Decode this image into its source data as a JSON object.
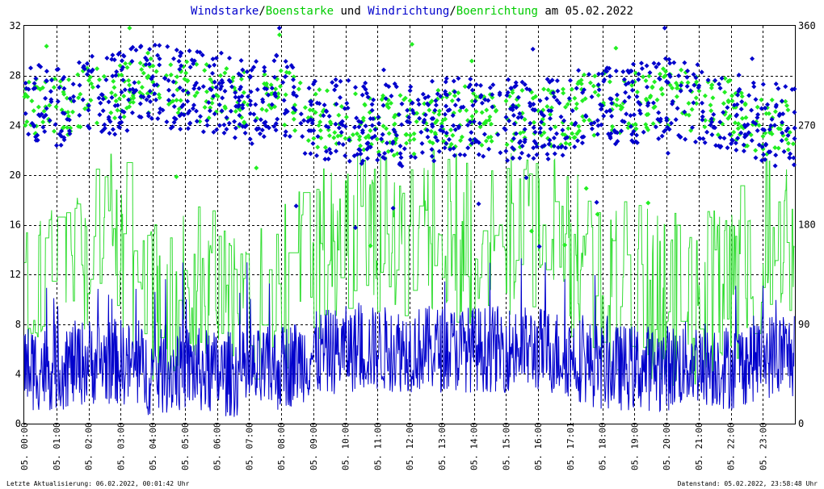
{
  "chart_data": {
    "type": "line",
    "title_parts": [
      {
        "text": "Windstarke",
        "color": "#0000cc"
      },
      {
        "text": "/",
        "color": "#000000"
      },
      {
        "text": "Boenstarke",
        "color": "#00cc00"
      },
      {
        "text": " und ",
        "color": "#000000"
      },
      {
        "text": "Windrichtung",
        "color": "#0000cc"
      },
      {
        "text": "/",
        "color": "#000000"
      },
      {
        "text": "Boenrichtung",
        "color": "#00cc00"
      },
      {
        "text": " am 05.02.2022",
        "color": "#000000"
      }
    ],
    "y_left": {
      "min": 0,
      "max": 32,
      "ticks": [
        "0",
        "4",
        "8",
        "12",
        "16",
        "20",
        "24",
        "28",
        "32"
      ]
    },
    "y_right": {
      "min": 0,
      "max": 360,
      "ticks": [
        "0",
        "90",
        "180",
        "270",
        "360"
      ]
    },
    "x_ticks": [
      "05. 00:00",
      "05. 01:00",
      "05. 02:00",
      "05. 03:00",
      "05. 04:00",
      "05. 05:00",
      "05. 06:00",
      "05. 07:00",
      "05. 08:00",
      "05. 09:00",
      "05. 10:00",
      "05. 11:00",
      "05. 12:00",
      "05. 13:00",
      "05. 14:00",
      "05. 15:00",
      "05. 16:00",
      "05. 17:01",
      "05. 18:00",
      "05. 19:00",
      "05. 20:00",
      "05. 21:00",
      "05. 22:00",
      "05. 23:00"
    ],
    "grid": true,
    "colors": {
      "wind": "#0000cc",
      "gust": "#33dd33",
      "wind_dir": "#0000cc",
      "gust_dir": "#22ee22",
      "grid": "#000000"
    },
    "hourly_mean_wind": [
      4.5,
      4.5,
      5,
      5,
      4,
      4.5,
      4,
      4,
      4.5,
      5.5,
      6,
      6,
      6,
      6,
      6,
      6,
      6,
      5.5,
      4.5,
      4.5,
      4.5,
      5,
      4.5,
      5.5
    ],
    "hourly_mean_gust": [
      11,
      11,
      15,
      15,
      10,
      11,
      10,
      10,
      11,
      13,
      15,
      15,
      15,
      15,
      15,
      15,
      15,
      14,
      11,
      11,
      10,
      10,
      11,
      15
    ],
    "hourly_mean_dir": [
      290,
      285,
      295,
      300,
      310,
      300,
      300,
      290,
      300,
      275,
      275,
      270,
      270,
      275,
      280,
      275,
      275,
      280,
      290,
      290,
      295,
      290,
      285,
      270
    ]
  },
  "footer": {
    "left": "Letzte Aktualisierung: 06.02.2022, 00:01:42 Uhr",
    "right": "Datenstand: 05.02.2022, 23:58:48 Uhr"
  }
}
